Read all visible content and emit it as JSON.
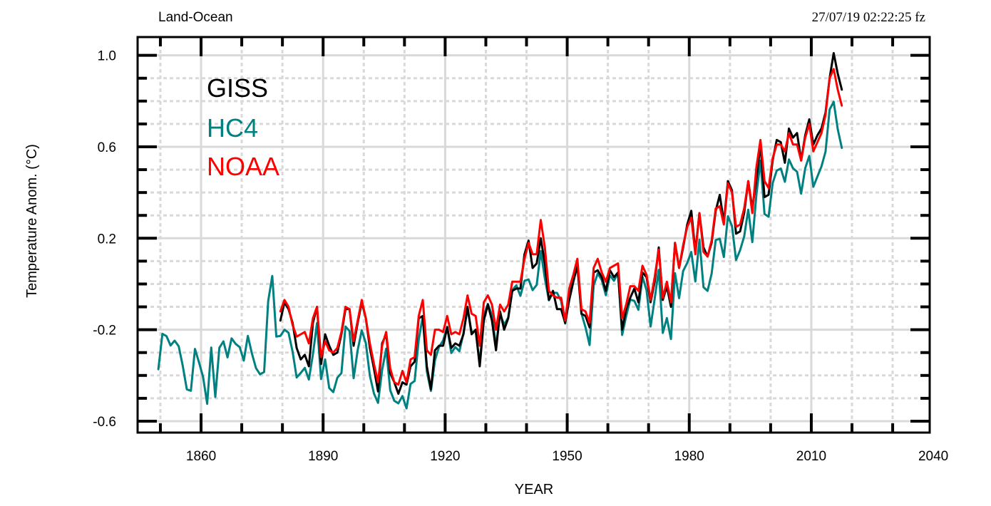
{
  "header": {
    "title": "Land-Ocean",
    "timestamp": "27/07/19  02:22:25 fz"
  },
  "chart_data": {
    "type": "line",
    "title": "Land-Ocean",
    "xlabel": "YEAR",
    "ylabel": "Temperature Anom. (°C)",
    "xlim": [
      1844.4,
      2039.1
    ],
    "ylim": [
      -0.65,
      1.08
    ],
    "x_major_ticks": [
      1860,
      1890,
      1920,
      1950,
      1980,
      2010,
      2040
    ],
    "x_tick_labels": [
      "1860",
      "1890",
      "1920",
      "1950",
      "1980",
      "2010",
      "2040"
    ],
    "x_minor_step": 10,
    "y_major_ticks": [
      -0.6,
      -0.2,
      0.2,
      0.6,
      1.0
    ],
    "y_tick_labels": [
      "-0.6",
      "-0.2",
      "0.2",
      "0.6",
      "1.0"
    ],
    "y_minor_step": 0.1,
    "grid": true,
    "legend_position": "top-left",
    "series": [
      {
        "name": "GISS",
        "color": "#000000",
        "start_year": 1880,
        "values": [
          -0.16,
          -0.08,
          -0.11,
          -0.17,
          -0.28,
          -0.33,
          -0.31,
          -0.36,
          -0.17,
          -0.1,
          -0.35,
          -0.22,
          -0.27,
          -0.31,
          -0.3,
          -0.22,
          -0.11,
          -0.11,
          -0.27,
          -0.17,
          -0.08,
          -0.15,
          -0.28,
          -0.37,
          -0.47,
          -0.26,
          -0.22,
          -0.39,
          -0.43,
          -0.48,
          -0.43,
          -0.44,
          -0.36,
          -0.34,
          -0.15,
          -0.14,
          -0.36,
          -0.46,
          -0.29,
          -0.27,
          -0.27,
          -0.19,
          -0.28,
          -0.26,
          -0.27,
          -0.22,
          -0.1,
          -0.22,
          -0.2,
          -0.36,
          -0.16,
          -0.09,
          -0.16,
          -0.29,
          -0.12,
          -0.2,
          -0.15,
          -0.03,
          -0.02,
          -0.02,
          0.13,
          0.19,
          0.07,
          0.09,
          0.2,
          0.09,
          -0.07,
          -0.03,
          -0.11,
          -0.11,
          -0.17,
          -0.07,
          0.01,
          0.08,
          -0.13,
          -0.14,
          -0.19,
          0.05,
          0.06,
          0.03,
          -0.03,
          0.06,
          0.03,
          0.05,
          -0.2,
          -0.11,
          -0.06,
          -0.02,
          -0.08,
          0.05,
          0.03,
          -0.08,
          0.01,
          0.16,
          -0.07,
          -0.01,
          -0.1,
          0.18,
          0.07,
          0.16,
          0.26,
          0.32,
          0.14,
          0.31,
          0.16,
          0.12,
          0.18,
          0.32,
          0.39,
          0.27,
          0.45,
          0.41,
          0.22,
          0.23,
          0.31,
          0.45,
          0.33,
          0.46,
          0.61,
          0.38,
          0.39,
          0.54,
          0.63,
          0.62,
          0.53,
          0.68,
          0.64,
          0.66,
          0.54,
          0.65,
          0.72,
          0.61,
          0.65,
          0.68,
          0.75,
          0.9,
          1.01,
          0.92,
          0.85
        ]
      },
      {
        "name": "HC4",
        "color": "#008080",
        "start_year": 1850,
        "values": [
          -0.373,
          -0.218,
          -0.228,
          -0.269,
          -0.248,
          -0.272,
          -0.358,
          -0.461,
          -0.467,
          -0.284,
          -0.343,
          -0.407,
          -0.524,
          -0.278,
          -0.494,
          -0.279,
          -0.251,
          -0.321,
          -0.238,
          -0.262,
          -0.276,
          -0.335,
          -0.227,
          -0.304,
          -0.368,
          -0.395,
          -0.385,
          -0.075,
          0.035,
          -0.23,
          -0.227,
          -0.2,
          -0.213,
          -0.296,
          -0.409,
          -0.389,
          -0.367,
          -0.418,
          -0.307,
          -0.171,
          -0.416,
          -0.33,
          -0.455,
          -0.473,
          -0.41,
          -0.39,
          -0.186,
          -0.206,
          -0.412,
          -0.289,
          -0.203,
          -0.259,
          -0.402,
          -0.479,
          -0.52,
          -0.377,
          -0.283,
          -0.465,
          -0.511,
          -0.522,
          -0.49,
          -0.544,
          -0.437,
          -0.424,
          -0.244,
          -0.141,
          -0.383,
          -0.468,
          -0.333,
          -0.275,
          -0.247,
          -0.187,
          -0.302,
          -0.276,
          -0.294,
          -0.215,
          -0.108,
          -0.21,
          -0.206,
          -0.35,
          -0.137,
          -0.087,
          -0.137,
          -0.273,
          -0.131,
          -0.178,
          -0.147,
          -0.026,
          -0.006,
          -0.052,
          0.014,
          0.02,
          -0.027,
          -0.004,
          0.144,
          0.025,
          -0.071,
          -0.038,
          -0.039,
          -0.074,
          -0.173,
          -0.052,
          0.028,
          0.097,
          -0.129,
          -0.19,
          -0.267,
          -0.007,
          0.046,
          0.017,
          -0.049,
          0.038,
          0.014,
          0.048,
          -0.223,
          -0.14,
          -0.068,
          -0.074,
          -0.113,
          0.032,
          -0.027,
          -0.186,
          -0.065,
          0.062,
          -0.214,
          -0.149,
          -0.241,
          0.047,
          -0.062,
          0.057,
          0.092,
          0.14,
          0.011,
          0.194,
          -0.014,
          -0.03,
          0.045,
          0.192,
          0.198,
          0.118,
          0.296,
          0.254,
          0.105,
          0.148,
          0.208,
          0.325,
          0.183,
          0.39,
          0.539,
          0.306,
          0.294,
          0.441,
          0.496,
          0.505,
          0.447,
          0.545,
          0.506,
          0.491,
          0.395,
          0.506,
          0.56,
          0.425,
          0.47,
          0.514,
          0.579,
          0.763,
          0.797,
          0.677,
          0.595
        ]
      },
      {
        "name": "NOAA",
        "color": "#ff0000",
        "start_year": 1880,
        "values": [
          -0.12,
          -0.07,
          -0.1,
          -0.18,
          -0.23,
          -0.22,
          -0.21,
          -0.26,
          -0.15,
          -0.1,
          -0.32,
          -0.25,
          -0.29,
          -0.3,
          -0.28,
          -0.21,
          -0.1,
          -0.11,
          -0.25,
          -0.16,
          -0.07,
          -0.15,
          -0.26,
          -0.35,
          -0.43,
          -0.27,
          -0.21,
          -0.37,
          -0.43,
          -0.44,
          -0.38,
          -0.43,
          -0.33,
          -0.32,
          -0.14,
          -0.07,
          -0.29,
          -0.31,
          -0.2,
          -0.2,
          -0.21,
          -0.14,
          -0.22,
          -0.21,
          -0.22,
          -0.15,
          -0.05,
          -0.13,
          -0.14,
          -0.27,
          -0.08,
          -0.05,
          -0.09,
          -0.2,
          -0.09,
          -0.12,
          -0.09,
          0.01,
          0.01,
          0.01,
          0.11,
          0.18,
          0.13,
          0.13,
          0.28,
          0.16,
          -0.03,
          -0.05,
          -0.06,
          -0.06,
          -0.16,
          -0.02,
          0.04,
          0.11,
          -0.11,
          -0.12,
          -0.17,
          0.07,
          0.11,
          0.05,
          0.01,
          0.07,
          0.08,
          0.09,
          -0.15,
          -0.09,
          -0.01,
          -0.01,
          -0.03,
          0.08,
          0.04,
          -0.07,
          0.03,
          0.15,
          -0.06,
          0.01,
          -0.08,
          0.18,
          0.07,
          0.17,
          0.25,
          0.29,
          0.13,
          0.31,
          0.14,
          0.12,
          0.19,
          0.33,
          0.34,
          0.26,
          0.44,
          0.4,
          0.25,
          0.26,
          0.33,
          0.45,
          0.31,
          0.51,
          0.63,
          0.45,
          0.42,
          0.55,
          0.61,
          0.61,
          0.58,
          0.66,
          0.61,
          0.61,
          0.54,
          0.64,
          0.7,
          0.58,
          0.62,
          0.66,
          0.74,
          0.9,
          0.94,
          0.85,
          0.78
        ]
      }
    ]
  }
}
